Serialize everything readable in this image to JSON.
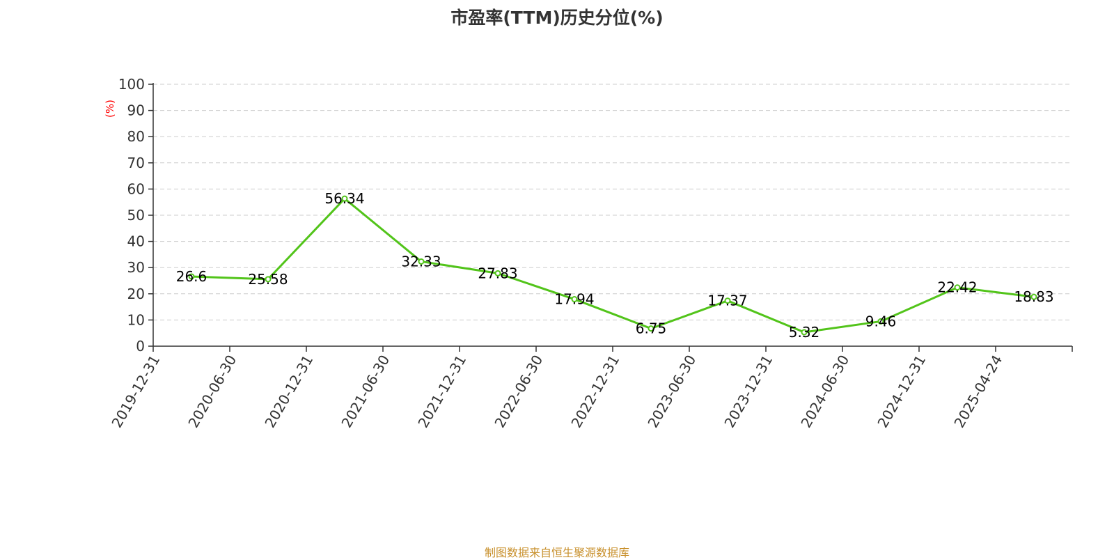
{
  "chart_data": {
    "type": "line",
    "title": "市盈率(TTM)历史分位(%)",
    "ylabel": "(%)",
    "xlabel": "",
    "ylim": [
      0,
      100
    ],
    "yticks": [
      0,
      10,
      20,
      30,
      40,
      50,
      60,
      70,
      80,
      90,
      100
    ],
    "grid": true,
    "categories": [
      "2019-12-31",
      "2020-06-30",
      "2020-12-31",
      "2021-06-30",
      "2021-12-31",
      "2022-06-30",
      "2022-12-31",
      "2023-06-30",
      "2023-12-31",
      "2024-06-30",
      "2024-12-31",
      "2025-04-24"
    ],
    "series": [
      {
        "values": [
          26.6,
          25.58,
          56.34,
          32.33,
          27.83,
          17.94,
          6.75,
          17.37,
          5.32,
          9.46,
          22.42,
          18.83
        ],
        "labels": [
          "26.6",
          "25.58",
          "56.34",
          "32.33",
          "27.83",
          "17.94",
          "6.75",
          "17.37",
          "5.32",
          "9.46",
          "22.42",
          "18.83"
        ],
        "color": "#52c41a"
      }
    ]
  },
  "colors": {
    "line": "#52c41a",
    "ylabel": "#ff0000",
    "source": "#c8902c",
    "grid": "#cccccc",
    "axis": "#333333"
  },
  "footer": {
    "source": "制图数据来自恒生聚源数据库"
  }
}
